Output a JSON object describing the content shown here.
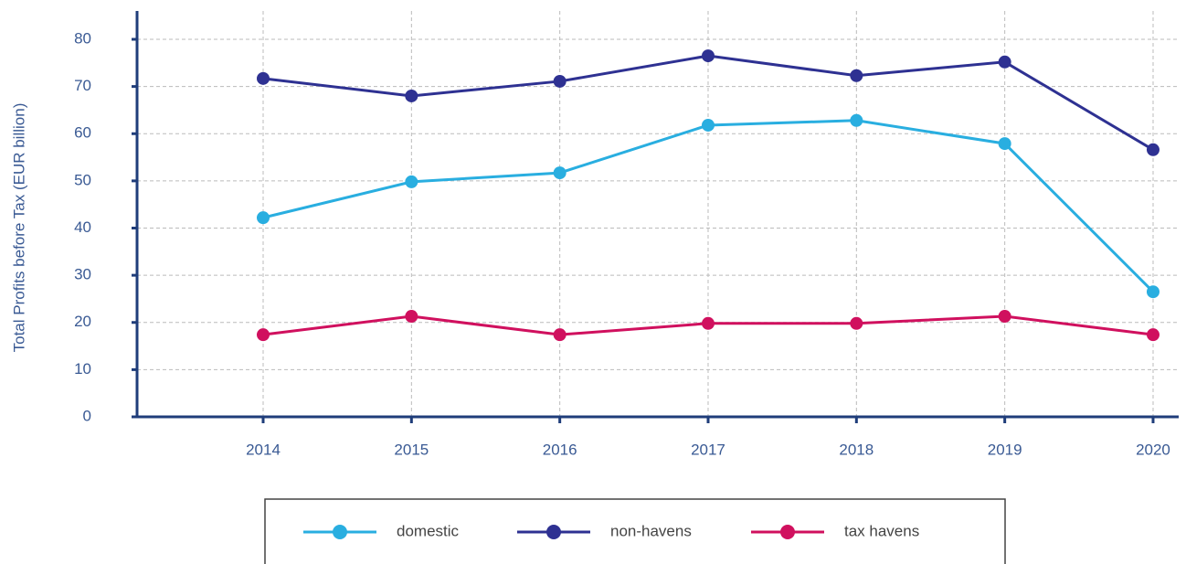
{
  "chart_data": {
    "type": "line",
    "y_label": "Total Profits before Tax (EUR billion)",
    "categories": [
      "2014",
      "2015",
      "2016",
      "2017",
      "2018",
      "2019",
      "2020"
    ],
    "series": [
      {
        "name": "domestic",
        "color": "#29aee0",
        "values": [
          42.2,
          49.8,
          51.7,
          61.8,
          62.8,
          57.9,
          26.5
        ]
      },
      {
        "name": "non-havens",
        "color": "#2e3192",
        "values": [
          71.7,
          68.0,
          71.1,
          76.5,
          72.3,
          75.2,
          56.6
        ]
      },
      {
        "name": "tax havens",
        "color": "#d0105e",
        "values": [
          17.4,
          21.3,
          17.4,
          19.8,
          19.8,
          21.3,
          17.4
        ]
      }
    ],
    "ylim": [
      0,
      80
    ],
    "yticks": [
      0,
      10,
      20,
      30,
      40,
      50,
      60,
      70,
      80
    ],
    "grid": true,
    "legend": "bottom"
  }
}
